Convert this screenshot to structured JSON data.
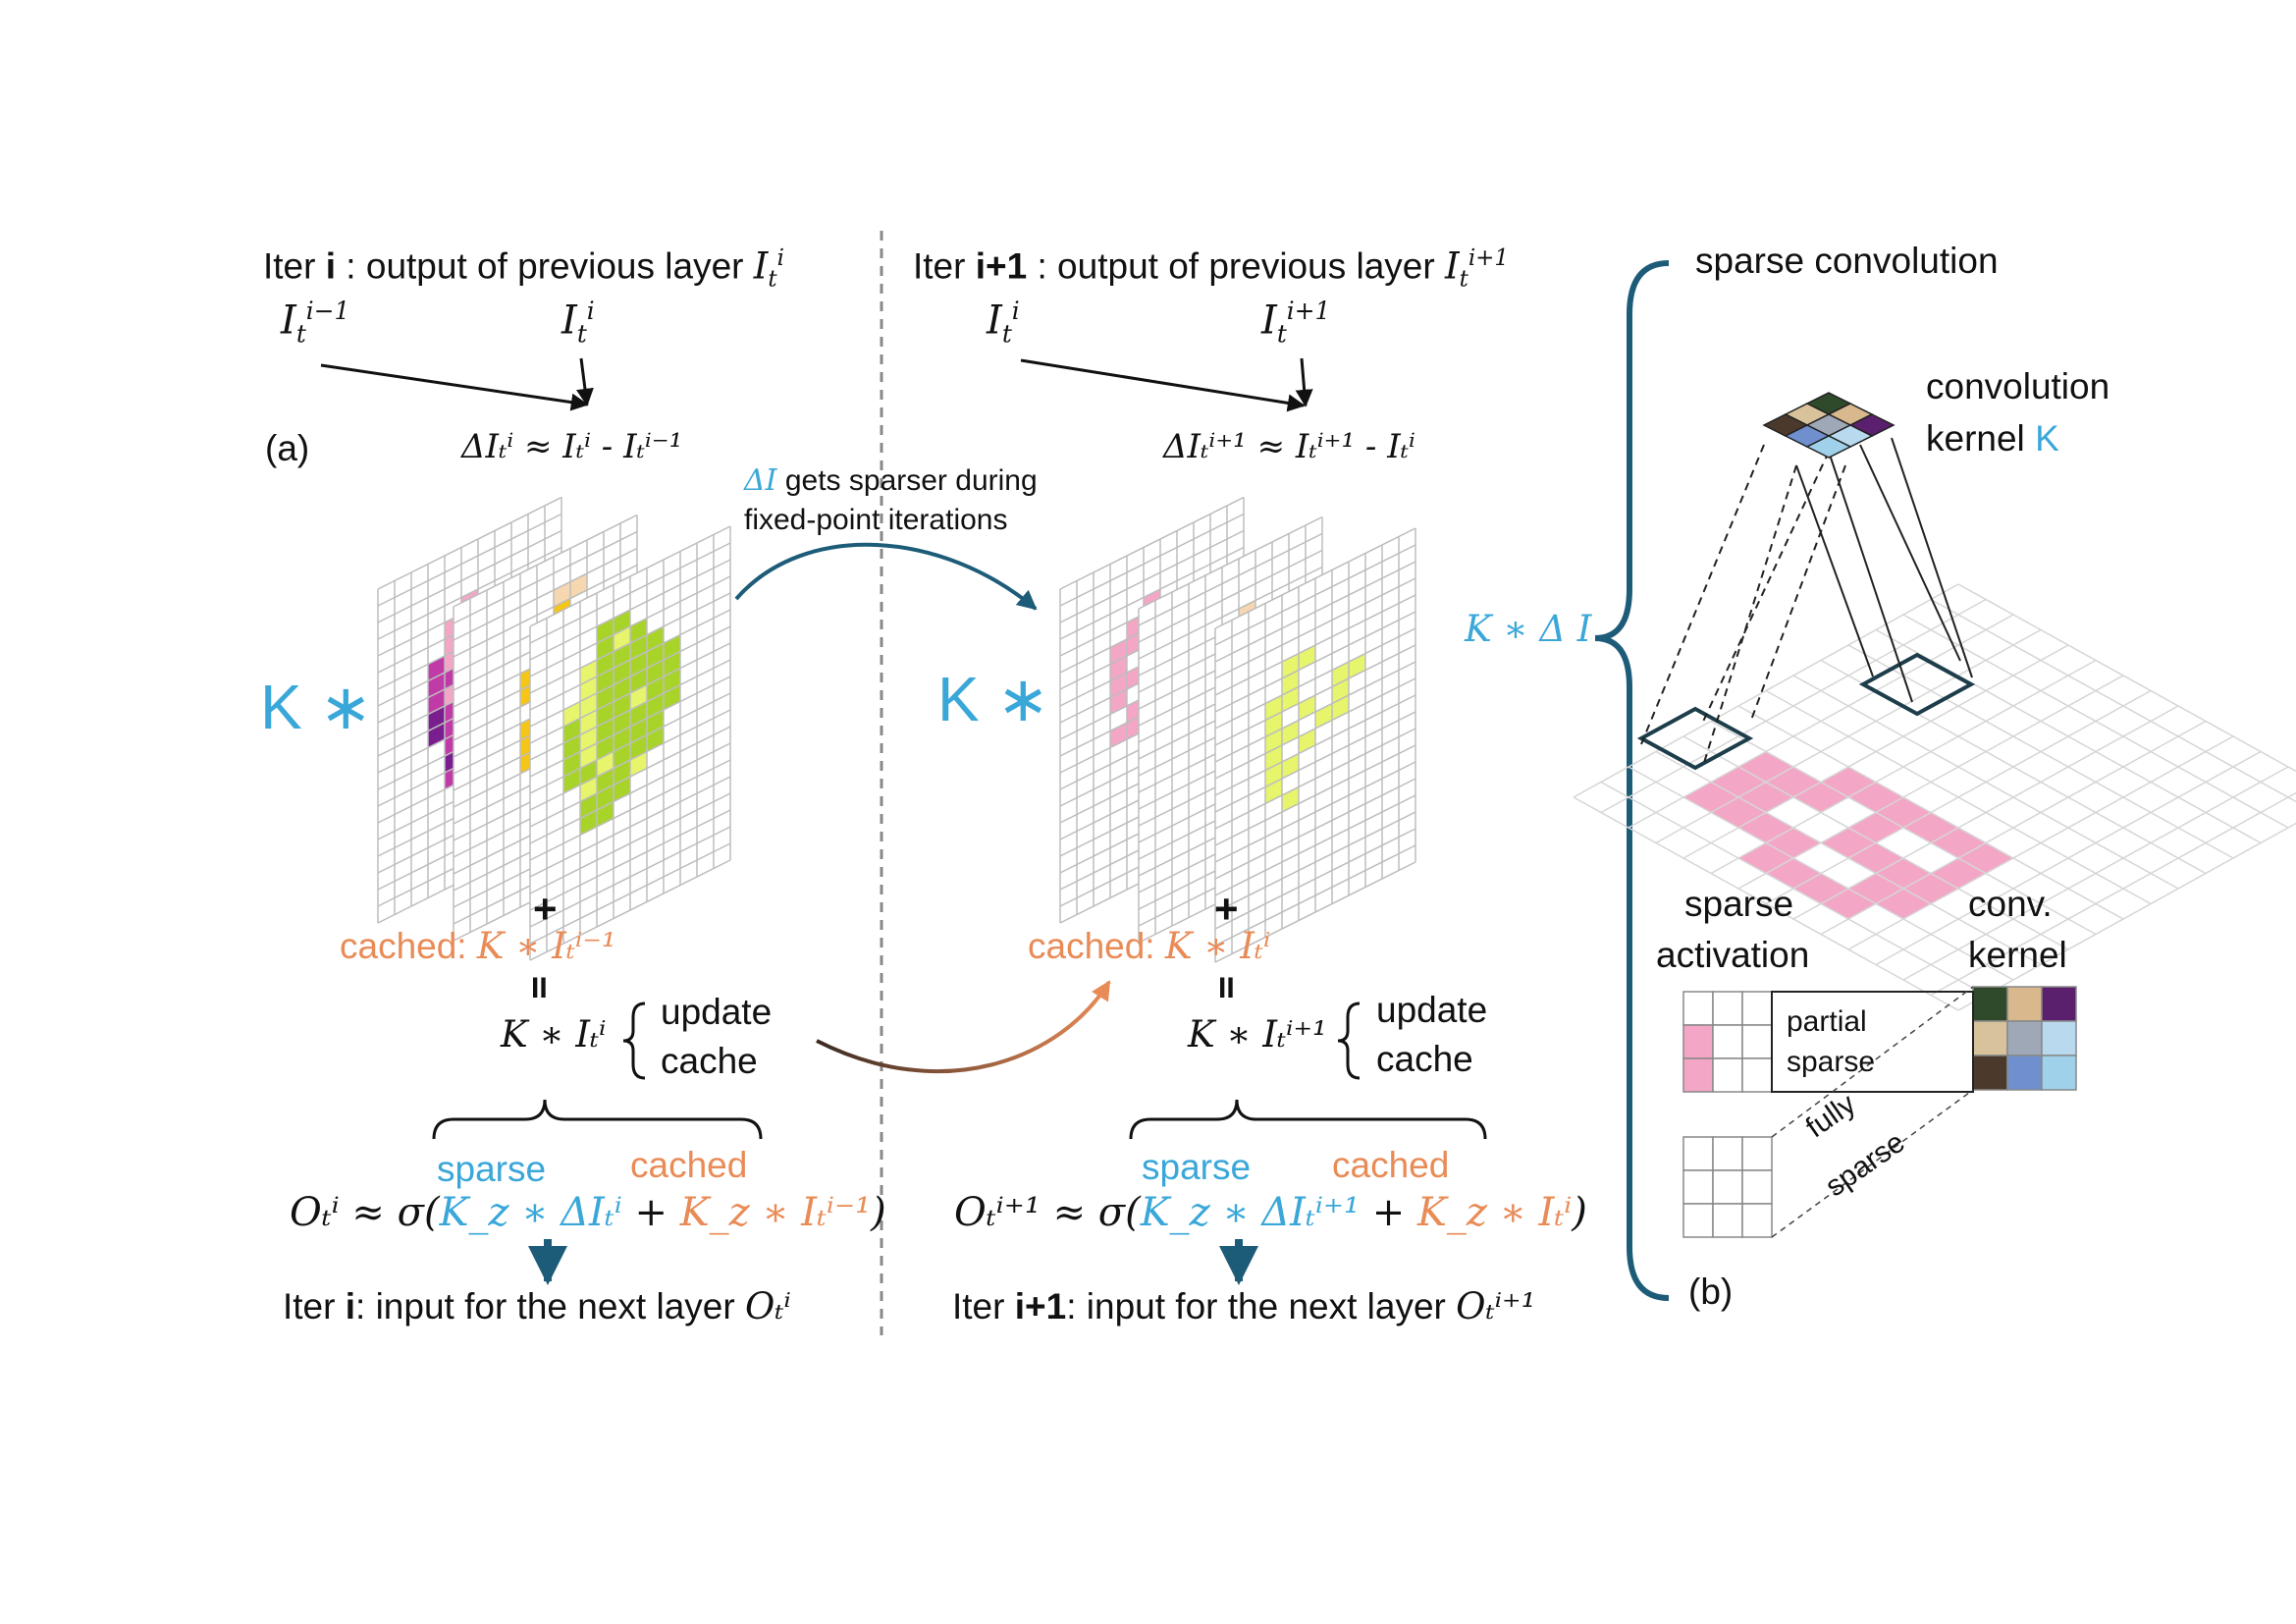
{
  "colors": {
    "blue": "#3aa7d9",
    "orange": "#e98b57",
    "dark_teal": "#1d5c78",
    "grid": "#bdbdbd",
    "pink": "#f4a6c6",
    "magenta": "#c03aa8",
    "purple": "#7a1e8f",
    "yellow": "#f5c518",
    "peach": "#f6d7b0",
    "green": "#a8d42a",
    "light_green": "#e6f56b"
  },
  "left": {
    "iter_prefix": "Iter",
    "iter_id": "i",
    "title_text": " : output of previous layer ",
    "title_var": "I",
    "title_sub": "t",
    "title_sup": "i",
    "in_prev": {
      "base": "I",
      "sub": "t",
      "sup": "i−1"
    },
    "in_curr": {
      "base": "I",
      "sub": "t",
      "sup": "i"
    },
    "panel_label": "(a)",
    "delta_eq": "ΔIₜⁱ ≈ Iₜⁱ - Iₜⁱ⁻¹",
    "kernel_mul": "K ∗",
    "plus": "+",
    "cached_prefix": "cached: ",
    "cached_expr": "K ∗ Iₜⁱ⁻¹",
    "equals": "II",
    "result": "K ∗ Iₜⁱ",
    "update": "update",
    "cache": "cache",
    "sparse_label": "sparse",
    "cached_label": "cached",
    "output_lhs": "Oₜⁱ ≈ σ(",
    "output_sparse": "K_z ∗ ΔIₜⁱ",
    "output_plus": " + ",
    "output_cached": "K_z ∗ Iₜⁱ⁻¹",
    "output_close": ")",
    "next_prefix": "Iter ",
    "next_id": "i",
    "next_text": ": input for the next layer ",
    "next_var": "Oₜⁱ"
  },
  "right": {
    "iter_prefix": "Iter",
    "iter_id": "i+1",
    "title_text": " : output of previous layer ",
    "in_prev": {
      "base": "I",
      "sub": "t",
      "sup": "i"
    },
    "in_curr": {
      "base": "I",
      "sub": "t",
      "sup": "i+1"
    },
    "delta_eq": "ΔIₜⁱ⁺¹ ≈ Iₜⁱ⁺¹ - Iₜⁱ",
    "kernel_mul": "K ∗",
    "plus": "+",
    "cached_prefix": "cached: ",
    "cached_expr": "K ∗ Iₜⁱ",
    "equals": "II",
    "result": "K ∗ Iₜⁱ⁺¹",
    "update": "update",
    "cache": "cache",
    "sparse_label": "sparse",
    "cached_label": "cached",
    "output_lhs": "Oₜⁱ⁺¹ ≈ σ(",
    "output_sparse": "K_z ∗ ΔIₜⁱ⁺¹",
    "output_plus": " + ",
    "output_cached": "K_z ∗ Iₜⁱ",
    "output_close": ")",
    "next_prefix": "Iter ",
    "next_id": "i+1",
    "next_text": ": input for the next layer ",
    "next_var": "Oₜⁱ⁺¹"
  },
  "middle": {
    "sparser_var": "ΔI",
    "sparser_line1": " gets sparser during",
    "sparser_line2": "fixed-point iterations"
  },
  "panel_b": {
    "title": "sparse convolution",
    "kernel_line1": "convolution",
    "kernel_line2_prefix": "kernel ",
    "kernel_line2_k": "K",
    "brace_label": "K ∗ Δ I",
    "sparse_activation_1": "sparse",
    "sparse_activation_2": "activation",
    "conv_kernel_1": "conv.",
    "conv_kernel_2": "kernel",
    "partial_1": "partial",
    "partial_2": "sparse",
    "fully_1": "fully",
    "fully_2": "sparse",
    "panel_label": "(b)"
  }
}
